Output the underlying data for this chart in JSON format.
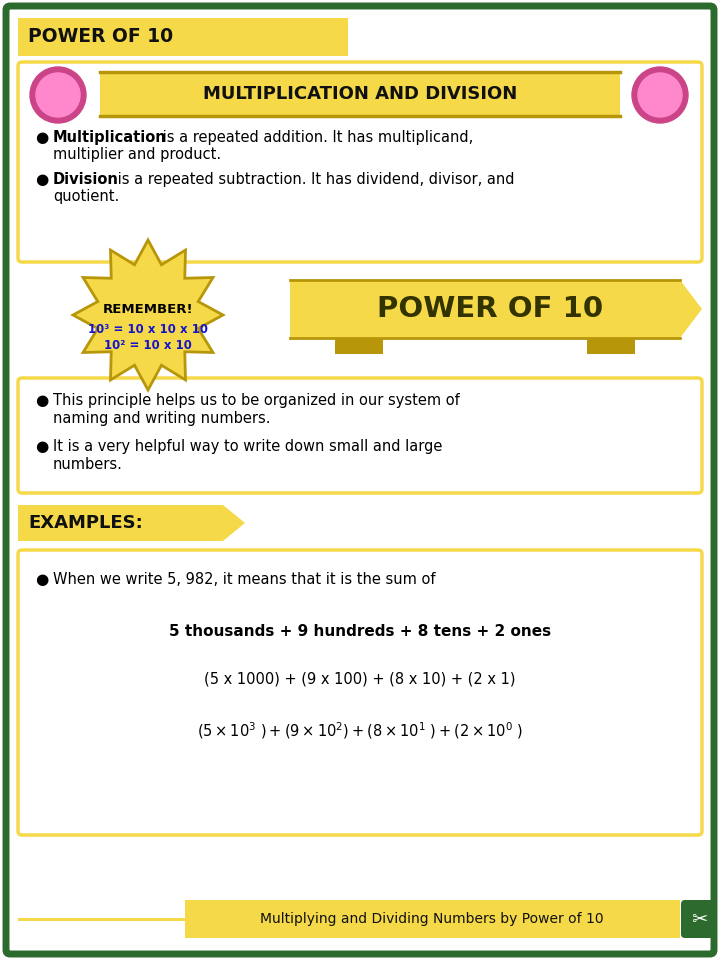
{
  "bg_color": "#ffffff",
  "outer_border_color": "#2d6a2d",
  "yellow_color": "#f5d949",
  "yellow_dark": "#b8960a",
  "dark_green": "#2d6a2d",
  "dark_text": "#111111",
  "blue_text": "#1515cc",
  "title_header": "POWER OF 10",
  "section1_title": "MULTIPLICATION AND DIVISION",
  "bullet1_bold": "Multiplication",
  "bullet1_rest": " is a repeated addition. It has multiplicand,",
  "bullet1_rest2": "multiplier and product.",
  "bullet2_bold": "Division",
  "bullet2_rest": " is a repeated subtraction. It has dividend, divisor, and",
  "bullet2_rest2": "quotient.",
  "remember_title": "REMEMBER!",
  "remember_line1": "10³ = 10 x 10 x 10",
  "remember_line2": "10² = 10 x 10",
  "power_banner": "POWER OF 10",
  "bullet3": "This principle helps us to be organized in our system of",
  "bullet3_2": "naming and writing numbers.",
  "bullet4": "It is a very helpful way to write down small and large",
  "bullet4_2": "numbers.",
  "examples_label": "EXAMPLES:",
  "example_bullet": "When we write 5, 982, it means that it is the sum of",
  "example_bold_line": "5 thousands + 9 hundreds + 8 tens + 2 ones",
  "example_line2": "(5 x 1000) + (9 x 100) + (8 x 10) + (2 x 1)",
  "footer_text": "Multiplying and Dividing Numbers by Power of 10"
}
